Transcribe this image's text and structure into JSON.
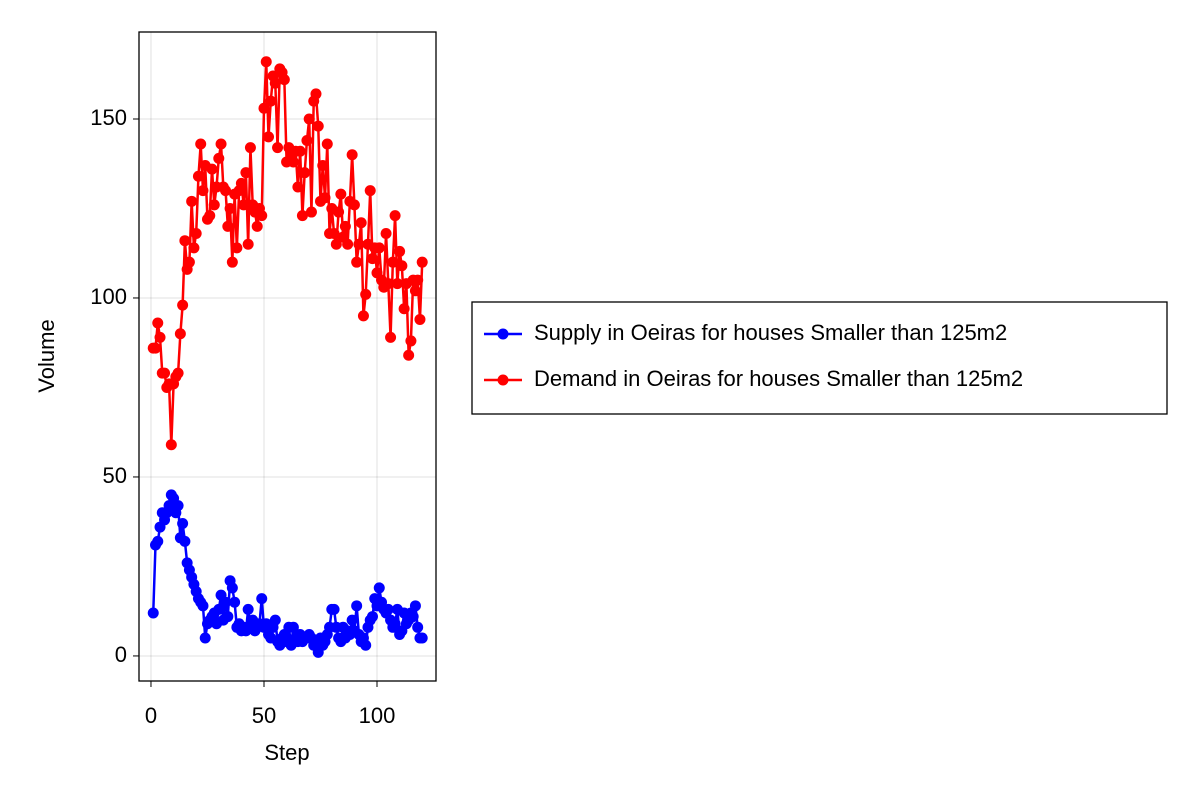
{
  "chart_data": {
    "type": "line",
    "xlabel": "Step",
    "ylabel": "Volume",
    "x": [
      1,
      2,
      3,
      4,
      5,
      6,
      7,
      8,
      9,
      10,
      11,
      12,
      13,
      14,
      15,
      16,
      17,
      18,
      19,
      20,
      21,
      22,
      23,
      24,
      25,
      26,
      27,
      28,
      29,
      30,
      31,
      32,
      33,
      34,
      35,
      36,
      37,
      38,
      39,
      40,
      41,
      42,
      43,
      44,
      45,
      46,
      47,
      48,
      49,
      50,
      51,
      52,
      53,
      54,
      55,
      56,
      57,
      58,
      59,
      60,
      61,
      62,
      63,
      64,
      65,
      66,
      67,
      68,
      69,
      70,
      71,
      72,
      73,
      74,
      75,
      76,
      77,
      78,
      79,
      80,
      81,
      82,
      83,
      84,
      85,
      86,
      87,
      88,
      89,
      90,
      91,
      92,
      93,
      94,
      95,
      96,
      97,
      98,
      99,
      100,
      101,
      102,
      103,
      104,
      105,
      106,
      107,
      108,
      109,
      110,
      111,
      112,
      113,
      114,
      115,
      116,
      117,
      118,
      119,
      120
    ],
    "series": [
      {
        "name": "Supply in Oeiras for houses Smaller than 125m2",
        "color": "#0000ff",
        "values": [
          12,
          31,
          32,
          36,
          40,
          38,
          40,
          42,
          45,
          44,
          40,
          42,
          33,
          37,
          32,
          26,
          24,
          22,
          20,
          18,
          16,
          15,
          14,
          5,
          9,
          10,
          11,
          12,
          9,
          13,
          17,
          10,
          15,
          11,
          21,
          19,
          15,
          8,
          9,
          7,
          8,
          7,
          13,
          8,
          10,
          7,
          8,
          9,
          16,
          8,
          9,
          6,
          5,
          8,
          10,
          4,
          3,
          5,
          6,
          4,
          8,
          3,
          8,
          5,
          4,
          6,
          4,
          5,
          5,
          6,
          5,
          3,
          4,
          1,
          5,
          3,
          4,
          6,
          8,
          13,
          13,
          8,
          5,
          4,
          8,
          5,
          7,
          6,
          10,
          7,
          14,
          6,
          4,
          5,
          3,
          8,
          10,
          11,
          16,
          14,
          19,
          15,
          13,
          12,
          13,
          10,
          8,
          9,
          13,
          6,
          7,
          12,
          9,
          10,
          12,
          11,
          14,
          8,
          5,
          5
        ]
      },
      {
        "name": "Demand in Oeiras for houses Smaller than 125m2",
        "color": "#ff0000",
        "values": [
          86,
          86,
          93,
          89,
          79,
          79,
          75,
          76,
          59,
          76,
          78,
          79,
          90,
          98,
          116,
          108,
          110,
          127,
          114,
          118,
          134,
          143,
          130,
          137,
          122,
          123,
          136,
          126,
          131,
          139,
          143,
          131,
          130,
          120,
          125,
          110,
          129,
          114,
          130,
          132,
          126,
          135,
          115,
          142,
          126,
          124,
          120,
          125,
          123,
          153,
          166,
          145,
          155,
          162,
          160,
          142,
          164,
          163,
          161,
          138,
          142,
          140,
          138,
          141,
          131,
          141,
          123,
          135,
          144,
          150,
          124,
          155,
          157,
          148,
          127,
          137,
          128,
          143,
          118,
          125,
          118,
          115,
          124,
          129,
          117,
          120,
          115,
          127,
          140,
          126,
          110,
          115,
          121,
          95,
          101,
          115,
          130,
          111,
          114,
          107,
          114,
          105,
          103,
          118,
          104,
          89,
          110,
          123,
          104,
          113,
          109,
          97,
          104,
          84,
          88,
          105,
          102,
          105,
          94,
          110
        ]
      }
    ],
    "xlim": [
      -5.3,
      126.1
    ],
    "xticks": [
      0,
      50,
      100
    ],
    "ylim": [
      -7,
      174.3
    ],
    "yticks": [
      0,
      50,
      100,
      150
    ],
    "grid": true,
    "legend": "right"
  }
}
